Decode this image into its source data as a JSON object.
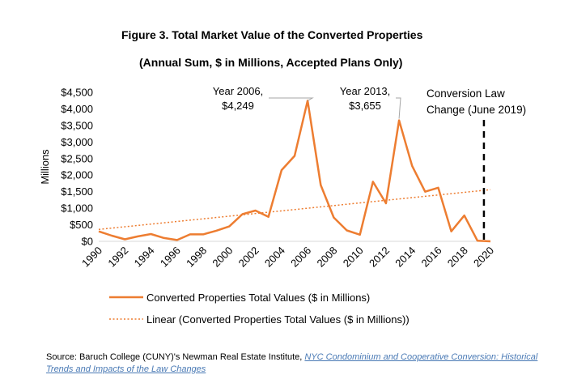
{
  "chart_data": {
    "type": "line",
    "title": "Figure 3. Total Market Value of the Converted Properties",
    "subtitle": "(Annual Sum, $ in Millions, Accepted Plans Only)",
    "ylabel": "Millions",
    "xlabel": "",
    "ylim": [
      0,
      4500
    ],
    "yticks": [
      "$0",
      "$500",
      "$1,000",
      "$1,500",
      "$2,000",
      "$2,500",
      "$3,000",
      "$3,500",
      "$4,000",
      "$4,500"
    ],
    "xtick_years": [
      "1990",
      "1992",
      "1994",
      "1996",
      "1998",
      "2000",
      "2002",
      "2004",
      "2006",
      "2008",
      "2010",
      "2012",
      "2014",
      "2016",
      "2018",
      "2020"
    ],
    "x": [
      1990,
      1991,
      1992,
      1993,
      1994,
      1995,
      1996,
      1997,
      1998,
      1999,
      2000,
      2001,
      2002,
      2003,
      2004,
      2005,
      2006,
      2007,
      2008,
      2009,
      2010,
      2011,
      2012,
      2013,
      2014,
      2015,
      2016,
      2017,
      2018,
      2019,
      2020
    ],
    "series": [
      {
        "name": "Converted Properties Total Values ($ in Millions)",
        "style": "solid",
        "color": "#ED7D31",
        "values": [
          300,
          170,
          60,
          150,
          220,
          100,
          40,
          210,
          210,
          320,
          450,
          820,
          930,
          740,
          2150,
          2580,
          4249,
          1700,
          720,
          330,
          200,
          1800,
          1150,
          3655,
          2280,
          1500,
          1620,
          300,
          780,
          20,
          0
        ]
      },
      {
        "name": "Linear (Converted Properties Total Values ($ in Millions))",
        "style": "dotted",
        "color": "#ED7D31",
        "values_trend": [
          {
            "x": 1990,
            "y": 360
          },
          {
            "x": 2020,
            "y": 1560
          }
        ]
      }
    ],
    "annotations": [
      {
        "line1": "Year 2006,",
        "line2": "$4,249",
        "x": 2006,
        "y": 4249
      },
      {
        "line1": "Year 2013,",
        "line2": "$3,655",
        "x": 2013,
        "y": 3655
      },
      {
        "line1": "Conversion Law",
        "line2": "Change (June 2019)",
        "x": 2019.5
      }
    ],
    "grid": false,
    "legend_position": "bottom"
  },
  "source": {
    "prefix": "Source: Baruch College (CUNY)'s Newman Real Estate Institute, ",
    "link_text": "NYC Condominium and Cooperative Conversion: Historical Trends and Impacts of the Law Changes"
  },
  "colors": {
    "series": "#ED7D31",
    "vline": "#000000",
    "annot_line": "#a6a6a6"
  }
}
